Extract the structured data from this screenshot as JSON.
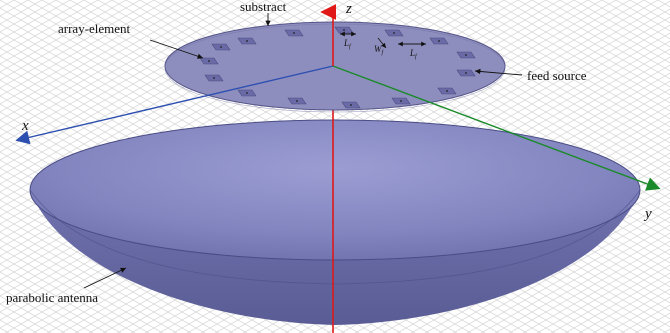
{
  "labels": {
    "substrate": "substract",
    "array_element": "array-element",
    "feed_source": "feed source",
    "parabolic_antenna": "parabolic antenna"
  },
  "axes": {
    "x": "x",
    "y": "y",
    "z": "z"
  },
  "dimensions": {
    "lf_left": "L",
    "lf_left_sub": "f",
    "wf": "W",
    "wf_sub": "f",
    "lf_right": "L",
    "lf_right_sub": "f"
  },
  "colors": {
    "background_grid": "#c8c8c8",
    "substrate_fill": "#8e8ebe",
    "element_fill": "#6a6aa6",
    "dish_fill": "#8587c2",
    "dish_shadow": "#5d5f98",
    "axis_x": "#2c4fb0",
    "axis_y": "#1a8a2a",
    "axis_z": "#e01818"
  }
}
